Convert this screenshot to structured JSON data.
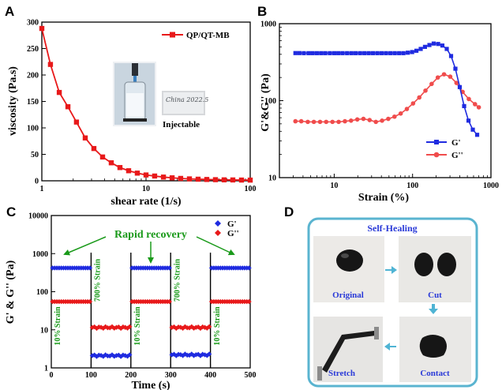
{
  "panels": {
    "a": "A",
    "b": "B",
    "c": "C",
    "d": "D"
  },
  "colors": {
    "red": "#e8191a",
    "blue": "#1f2be0",
    "g2red": "#f04c4c",
    "green": "#1a9a1a",
    "frame": "#5ab4d0"
  },
  "chart_data": [
    {
      "type": "line",
      "panel": "A",
      "xlabel": "shear rate (1/s)",
      "ylabel": "viscosity (Pa.s)",
      "xscale": "log",
      "xlim": [
        1,
        100
      ],
      "ylim": [
        0,
        300
      ],
      "x_ticks": [
        {
          "v": 1,
          "label": "1"
        },
        {
          "v": 10,
          "label": "10"
        },
        {
          "v": 100,
          "label": "100"
        }
      ],
      "y_ticks": [
        0,
        50,
        100,
        150,
        200,
        250,
        300
      ],
      "series": [
        {
          "name": "QP/QT-MB",
          "x": [
            1,
            1.21,
            1.47,
            1.78,
            2.15,
            2.61,
            3.16,
            3.83,
            4.64,
            5.62,
            6.81,
            8.25,
            10,
            12.1,
            14.7,
            17.8,
            21.5,
            26.1,
            31.6,
            38.3,
            46.4,
            56.2,
            68.1,
            82.5,
            100
          ],
          "values": [
            288,
            220,
            167,
            140,
            111,
            81,
            61,
            45,
            34,
            25,
            19,
            14.5,
            11,
            9,
            7,
            5.6,
            4.5,
            3.6,
            3,
            2.5,
            2.1,
            1.8,
            1.6,
            1.4,
            1.3
          ]
        }
      ],
      "inset_labels": {
        "vial_text": "China 2022.5",
        "caption": "Injectable"
      }
    },
    {
      "type": "line",
      "panel": "B",
      "xlabel": "Strain (%)",
      "ylabel": "G'&G'' (Pa)",
      "xscale": "log",
      "yscale": "log",
      "xlim": [
        2,
        1000
      ],
      "ylim": [
        10,
        1000
      ],
      "x_ticks": [
        {
          "v": 10,
          "label": "10"
        },
        {
          "v": 100,
          "label": "100"
        },
        {
          "v": 1000,
          "label": "1000"
        }
      ],
      "y_ticks": [
        {
          "v": 10,
          "label": "10"
        },
        {
          "v": 100,
          "label": "100"
        },
        {
          "v": 1000,
          "label": "1000"
        }
      ],
      "legend_position": "lower-right",
      "series": [
        {
          "name": "G'",
          "x": [
            3.2,
            3.6,
            4.1,
            4.7,
            5.3,
            6,
            6.8,
            7.7,
            8.8,
            10,
            11.3,
            12.8,
            14.6,
            16.6,
            18.8,
            21.4,
            24.3,
            27.6,
            31.3,
            35.6,
            40.4,
            45.9,
            52.2,
            59.3,
            67.4,
            76.5,
            86.9,
            98.8,
            112,
            127,
            144,
            164,
            186,
            212,
            240,
            273,
            310,
            352,
            400,
            455,
            517,
            587,
            667
          ],
          "values": [
            415,
            415,
            414,
            414,
            414,
            414,
            414,
            414,
            414,
            414,
            414,
            414,
            414,
            414,
            414,
            414,
            414,
            414,
            414,
            414,
            414,
            414,
            414,
            414,
            414,
            414,
            420,
            428,
            445,
            470,
            500,
            528,
            552,
            545,
            520,
            470,
            380,
            260,
            150,
            85,
            55,
            42,
            36
          ]
        },
        {
          "name": "G''",
          "x": [
            3.2,
            3.8,
            4.6,
            5.5,
            6.6,
            7.9,
            9.5,
            11.4,
            13.7,
            16.4,
            19.7,
            23.6,
            28.3,
            34,
            40.8,
            49,
            58.8,
            70.5,
            84.6,
            101.5,
            121.8,
            146,
            175,
            210,
            252,
            302,
            363,
            435,
            522,
            626,
            700
          ],
          "values": [
            54,
            54,
            53,
            53,
            53,
            53,
            53,
            53,
            54,
            55,
            57,
            58,
            56,
            53,
            55,
            58,
            62,
            68,
            78,
            92,
            110,
            135,
            165,
            200,
            220,
            205,
            170,
            130,
            105,
            90,
            82
          ]
        }
      ]
    },
    {
      "type": "scatter",
      "panel": "C",
      "xlabel": "Time (s)",
      "ylabel": "G' & G'' (Pa)",
      "yscale": "log",
      "xlim": [
        0,
        500
      ],
      "ylim": [
        1,
        10000
      ],
      "x_ticks": [
        0,
        100,
        200,
        300,
        400,
        500
      ],
      "y_ticks": [
        {
          "v": 1,
          "label": "1"
        },
        {
          "v": 10,
          "label": "10"
        },
        {
          "v": 100,
          "label": "100"
        },
        {
          "v": 1000,
          "label": "1000"
        },
        {
          "v": 10000,
          "label": "10000"
        }
      ],
      "legend_position": "top-right",
      "series": [
        {
          "name": "G'",
          "segments": [
            {
              "x_range": [
                0,
                100
              ],
              "value": 420
            },
            {
              "x_range": [
                100,
                200
              ],
              "value": 2.1
            },
            {
              "x_range": [
                200,
                300
              ],
              "value": 420
            },
            {
              "x_range": [
                300,
                400
              ],
              "value": 2.2
            },
            {
              "x_range": [
                400,
                500
              ],
              "value": 420
            }
          ]
        },
        {
          "name": "G''",
          "segments": [
            {
              "x_range": [
                0,
                100
              ],
              "value": 55
            },
            {
              "x_range": [
                100,
                200
              ],
              "value": 11.5
            },
            {
              "x_range": [
                200,
                300
              ],
              "value": 55
            },
            {
              "x_range": [
                300,
                400
              ],
              "value": 11.5
            },
            {
              "x_range": [
                400,
                500
              ],
              "value": 55
            }
          ]
        }
      ],
      "phase_labels": [
        "10% Strain",
        "700% Strain",
        "10% Strain",
        "700% Strain",
        "10% Strain"
      ],
      "annotation": "Rapid recovery"
    }
  ],
  "panel_d": {
    "title": "Self-Healing",
    "labels": [
      "Original",
      "Cut",
      "Contact",
      "Stretch"
    ]
  }
}
